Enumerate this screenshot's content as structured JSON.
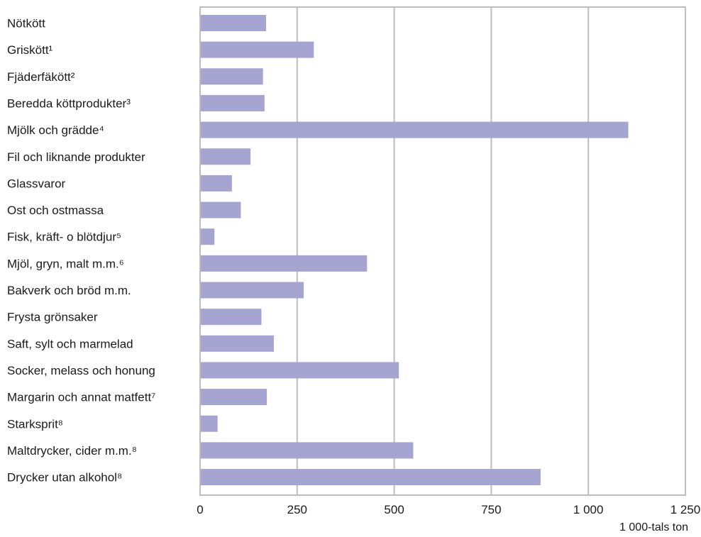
{
  "chart_data": {
    "type": "bar",
    "orientation": "horizontal",
    "categories": [
      "Nötkött",
      "Griskött¹",
      "Fjäderfäkött²",
      "Beredda köttprodukter³",
      "Mjölk och grädde⁴",
      "Fil och liknande produkter",
      "Glassvaror",
      "Ost och ostmassa",
      "Fisk, kräft- o blötdjur⁵",
      "Mjöl, gryn, malt m.m.⁶",
      "Bakverk och bröd m.m.",
      "Frysta grönsaker",
      "Saft, sylt och marmelad",
      "Socker, melass och honung",
      "Margarin och annat matfett⁷",
      "Starksprit⁸",
      "Maltdrycker, cider m.m.⁸",
      "Drycker utan alkohol⁸"
    ],
    "values": [
      170,
      293,
      162,
      166,
      1103,
      130,
      82,
      105,
      37,
      430,
      267,
      158,
      190,
      512,
      172,
      45,
      549,
      877
    ],
    "xlim": [
      0,
      1250
    ],
    "xticks": [
      0,
      250,
      500,
      750,
      1000,
      1250
    ],
    "xtick_labels": [
      "0",
      "250",
      "500",
      "750",
      "1 000",
      "1 250"
    ],
    "xlabel": "1 000-tals ton",
    "ylabel": "",
    "title": "",
    "grid": "vertical",
    "colors": {
      "bar": "#a6a5d1",
      "grid": "#bdbdbd",
      "frame": "#bdbdbd",
      "text": "#1a1a1a"
    }
  }
}
